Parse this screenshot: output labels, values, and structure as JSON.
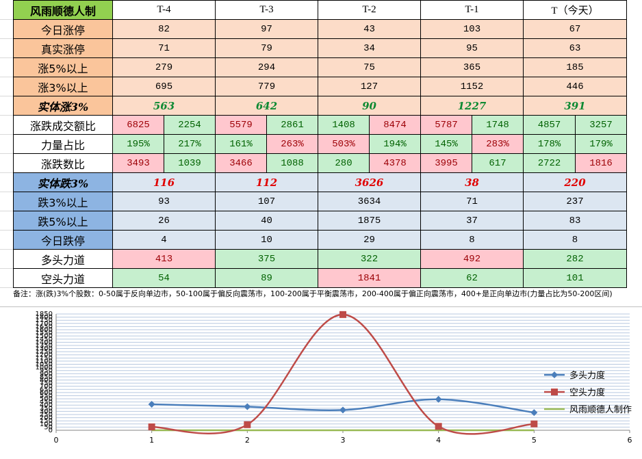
{
  "table": {
    "corner": "风雨顺德人制",
    "headers": [
      "T-4",
      "T-3",
      "T-2",
      "T-1",
      "T（今天）"
    ],
    "up_rows": [
      {
        "label": "今日涨停",
        "values": [
          "82",
          "97",
          "43",
          "103",
          "67"
        ]
      },
      {
        "label": "真实涨停",
        "values": [
          "71",
          "79",
          "34",
          "95",
          "63"
        ]
      },
      {
        "label": "涨5%以上",
        "values": [
          "279",
          "294",
          "75",
          "365",
          "185"
        ]
      },
      {
        "label": "涨3%以上",
        "values": [
          "695",
          "779",
          "127",
          "1152",
          "446"
        ]
      }
    ],
    "solid_up": {
      "label": "实体涨3%",
      "values": [
        "563",
        "642",
        "90",
        "1227",
        "391"
      ]
    },
    "split_rows": [
      {
        "label": "涨跌成交额比",
        "cells": [
          {
            "v": "6825",
            "c": "pink"
          },
          {
            "v": "2254",
            "c": "green"
          },
          {
            "v": "5579",
            "c": "pink"
          },
          {
            "v": "2861",
            "c": "green"
          },
          {
            "v": "1408",
            "c": "green"
          },
          {
            "v": "8474",
            "c": "pink"
          },
          {
            "v": "5787",
            "c": "pink"
          },
          {
            "v": "1748",
            "c": "green"
          },
          {
            "v": "4857",
            "c": "green"
          },
          {
            "v": "3257",
            "c": "green"
          }
        ]
      },
      {
        "label": "力量占比",
        "cells": [
          {
            "v": "195%",
            "c": "green"
          },
          {
            "v": "217%",
            "c": "green"
          },
          {
            "v": "161%",
            "c": "green"
          },
          {
            "v": "263%",
            "c": "pink"
          },
          {
            "v": "503%",
            "c": "pink"
          },
          {
            "v": "194%",
            "c": "green"
          },
          {
            "v": "145%",
            "c": "green"
          },
          {
            "v": "283%",
            "c": "pink"
          },
          {
            "v": "178%",
            "c": "green"
          },
          {
            "v": "179%",
            "c": "green"
          }
        ]
      },
      {
        "label": "涨跌数比",
        "cells": [
          {
            "v": "3493",
            "c": "pink"
          },
          {
            "v": "1039",
            "c": "green"
          },
          {
            "v": "3466",
            "c": "pink"
          },
          {
            "v": "1088",
            "c": "green"
          },
          {
            "v": "280",
            "c": "green"
          },
          {
            "v": "4378",
            "c": "pink"
          },
          {
            "v": "3995",
            "c": "pink"
          },
          {
            "v": "617",
            "c": "green"
          },
          {
            "v": "2722",
            "c": "green"
          },
          {
            "v": "1816",
            "c": "pink"
          }
        ]
      }
    ],
    "solid_down": {
      "label": "实体跌3%",
      "values": [
        "116",
        "112",
        "3626",
        "38",
        "220"
      ]
    },
    "down_rows": [
      {
        "label": "跌3%以上",
        "values": [
          "93",
          "107",
          "3634",
          "71",
          "237"
        ]
      },
      {
        "label": "跌5%以上",
        "values": [
          "26",
          "40",
          "1875",
          "37",
          "83"
        ]
      },
      {
        "label": "今日跌停",
        "values": [
          "4",
          "10",
          "29",
          "8",
          "8"
        ]
      }
    ],
    "force_rows": [
      {
        "label": "多头力道",
        "cells": [
          {
            "v": "413",
            "c": "pink"
          },
          {
            "v": "375",
            "c": "green"
          },
          {
            "v": "322",
            "c": "green"
          },
          {
            "v": "492",
            "c": "pink"
          },
          {
            "v": "282",
            "c": "green"
          }
        ]
      },
      {
        "label": "空头力道",
        "cells": [
          {
            "v": "54",
            "c": "green"
          },
          {
            "v": "89",
            "c": "green"
          },
          {
            "v": "1841",
            "c": "pink"
          },
          {
            "v": "62",
            "c": "green"
          },
          {
            "v": "101",
            "c": "green"
          }
        ]
      }
    ]
  },
  "note": "备注：涨(跌)3%个股数：0-50属于反向单边市，50-100属于偏反向震荡市，100-200属于平衡震荡市，200-400属于偏正向震荡市，400+是正向单边市(力量占比为50-200区间)",
  "chart_data": {
    "type": "line",
    "x": [
      1,
      2,
      3,
      4,
      5
    ],
    "xlim": [
      0,
      6
    ],
    "ylim": [
      0,
      1850
    ],
    "xticks": [
      "0",
      "1",
      "2",
      "3",
      "4",
      "5",
      "6"
    ],
    "yticks": [
      "0",
      "50",
      "100",
      "150",
      "200",
      "250",
      "300",
      "350",
      "400",
      "450",
      "500",
      "550",
      "600",
      "650",
      "700",
      "750",
      "800",
      "850",
      "900",
      "950",
      "1000",
      "1050",
      "1100",
      "1150",
      "1200",
      "1250",
      "1300",
      "1350",
      "1400",
      "1450",
      "1500",
      "1550",
      "1600",
      "1650",
      "1700",
      "1750",
      "1800",
      "1850"
    ],
    "grid": true,
    "legend_position": "right",
    "series": [
      {
        "name": "多头力度",
        "values": [
          413,
          375,
          322,
          492,
          282
        ],
        "color": "#4a7ebb",
        "marker": "diamond"
      },
      {
        "name": "空头力度",
        "values": [
          54,
          89,
          1841,
          62,
          101
        ],
        "color": "#be4b48",
        "marker": "square"
      },
      {
        "name": "风雨顺德人制作",
        "values": [
          0,
          0,
          0,
          0,
          0
        ],
        "color": "#98b954",
        "marker": "none"
      }
    ]
  }
}
